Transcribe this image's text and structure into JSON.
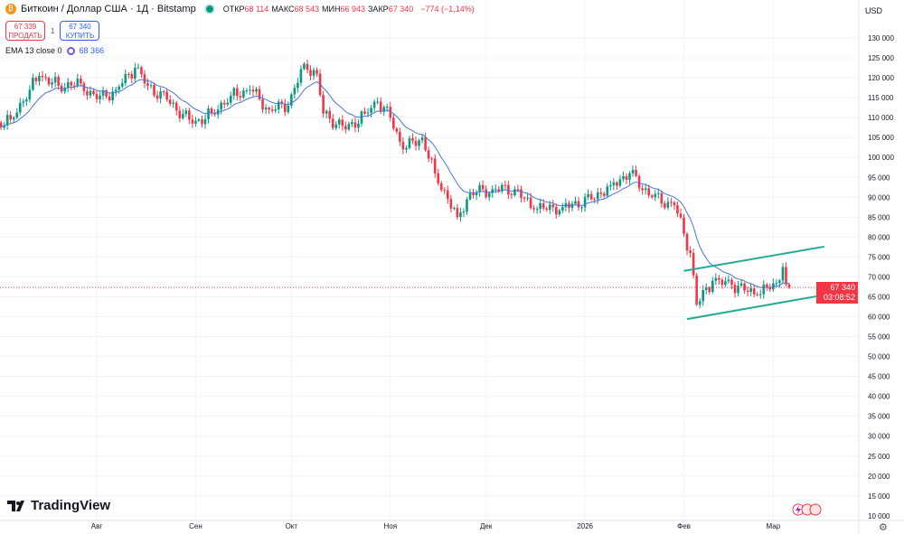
{
  "header": {
    "symbol_icon": "bitcoin-icon",
    "title": "Биткоин / Доллар США · 1Д · Bitstamp",
    "market_status": "open",
    "ohlc": [
      {
        "k": "ОТКР",
        "v": "68 114"
      },
      {
        "k": "МАКС",
        "v": "68 543"
      },
      {
        "k": "МИН",
        "v": "66 943"
      },
      {
        "k": "ЗАКР",
        "v": "67 340"
      }
    ],
    "change": "−774 (−1,14%)"
  },
  "trade": {
    "sell_price": "67 339",
    "sell_label": "ПРОДАТЬ",
    "spread": "1",
    "buy_price": "67 340",
    "buy_label": "КУПИТЬ"
  },
  "indicator": {
    "name": "EMA 13 close 0",
    "value": "68 366"
  },
  "currency": "USD",
  "price_label": {
    "price": "67 340",
    "countdown": "03:08:52"
  },
  "logo": "TradingView",
  "colors": {
    "up": "#089981",
    "down": "#f23645",
    "ema": "#4a74d8",
    "trendline": "#22ab94",
    "price_line": "#f23645"
  },
  "chart_data": {
    "type": "candlestick",
    "interval": "1D",
    "y_ticks": [
      "130 000",
      "125 000",
      "120 000",
      "115 000",
      "110 000",
      "105 000",
      "100 000",
      "95 000",
      "90 000",
      "85 000",
      "80 000",
      "75 000",
      "70 000",
      "65 000",
      "60 000",
      "55 000",
      "50 000",
      "45 000",
      "40 000",
      "35 000",
      "30 000",
      "25 000",
      "20 000",
      "15 000",
      "10 000"
    ],
    "ylim": [
      10000,
      130000
    ],
    "x_ticks": [
      {
        "label": "Авг",
        "date": "2025-08-01"
      },
      {
        "label": "Сен",
        "date": "2025-09-01"
      },
      {
        "label": "Окт",
        "date": "2025-10-01"
      },
      {
        "label": "Ноя",
        "date": "2025-11-01"
      },
      {
        "label": "Дек",
        "date": "2025-12-01"
      },
      {
        "label": "2026",
        "date": "2026-01-01"
      },
      {
        "label": "Фев",
        "date": "2026-02-01"
      },
      {
        "label": "Мар",
        "date": "2026-03-01"
      }
    ],
    "approx_close_path": [
      [
        "2025-06-29",
        107800
      ],
      [
        "2025-07-05",
        109500
      ],
      [
        "2025-07-11",
        117000
      ],
      [
        "2025-07-14",
        120500
      ],
      [
        "2025-07-20",
        118000
      ],
      [
        "2025-07-27",
        118600
      ],
      [
        "2025-08-01",
        114600
      ],
      [
        "2025-08-07",
        117000
      ],
      [
        "2025-08-13",
        122500
      ],
      [
        "2025-08-17",
        118000
      ],
      [
        "2025-08-23",
        114500
      ],
      [
        "2025-08-31",
        108500
      ],
      [
        "2025-09-06",
        111000
      ],
      [
        "2025-09-12",
        115500
      ],
      [
        "2025-09-18",
        117000
      ],
      [
        "2025-09-24",
        112000
      ],
      [
        "2025-09-30",
        113000
      ],
      [
        "2025-10-05",
        123500
      ],
      [
        "2025-10-09",
        121000
      ],
      [
        "2025-10-11",
        111000
      ],
      [
        "2025-10-18",
        107000
      ],
      [
        "2025-10-24",
        111000
      ],
      [
        "2025-10-28",
        114000
      ],
      [
        "2025-11-01",
        110000
      ],
      [
        "2025-11-05",
        102000
      ],
      [
        "2025-11-11",
        105000
      ],
      [
        "2025-11-15",
        96000
      ],
      [
        "2025-11-22",
        85000
      ],
      [
        "2025-11-26",
        91000
      ],
      [
        "2025-12-03",
        92000
      ],
      [
        "2025-12-10",
        92000
      ],
      [
        "2025-12-16",
        87000
      ],
      [
        "2025-12-25",
        87500
      ],
      [
        "2026-01-03",
        89500
      ],
      [
        "2026-01-09",
        93000
      ],
      [
        "2026-01-15",
        96000
      ],
      [
        "2026-01-22",
        90000
      ],
      [
        "2026-01-29",
        88000
      ],
      [
        "2026-02-03",
        76000
      ],
      [
        "2026-02-05",
        63000
      ],
      [
        "2026-02-10",
        69000
      ],
      [
        "2026-02-16",
        68000
      ],
      [
        "2026-02-24",
        65500
      ],
      [
        "2026-03-02",
        68500
      ],
      [
        "2026-03-04",
        72500
      ],
      [
        "2026-03-05",
        68114
      ],
      [
        "2026-03-06",
        67340
      ]
    ],
    "last": {
      "open": 68114,
      "high": 68543,
      "low": 66943,
      "close": 67340
    },
    "ema_period": 13,
    "trendlines": [
      {
        "from": [
          "2026-02-01",
          71500
        ],
        "to": [
          "2026-03-17",
          77600
        ]
      },
      {
        "from": [
          "2026-02-02",
          59400
        ],
        "to": [
          "2026-03-18",
          65600
        ]
      }
    ],
    "current_price": 67340
  }
}
